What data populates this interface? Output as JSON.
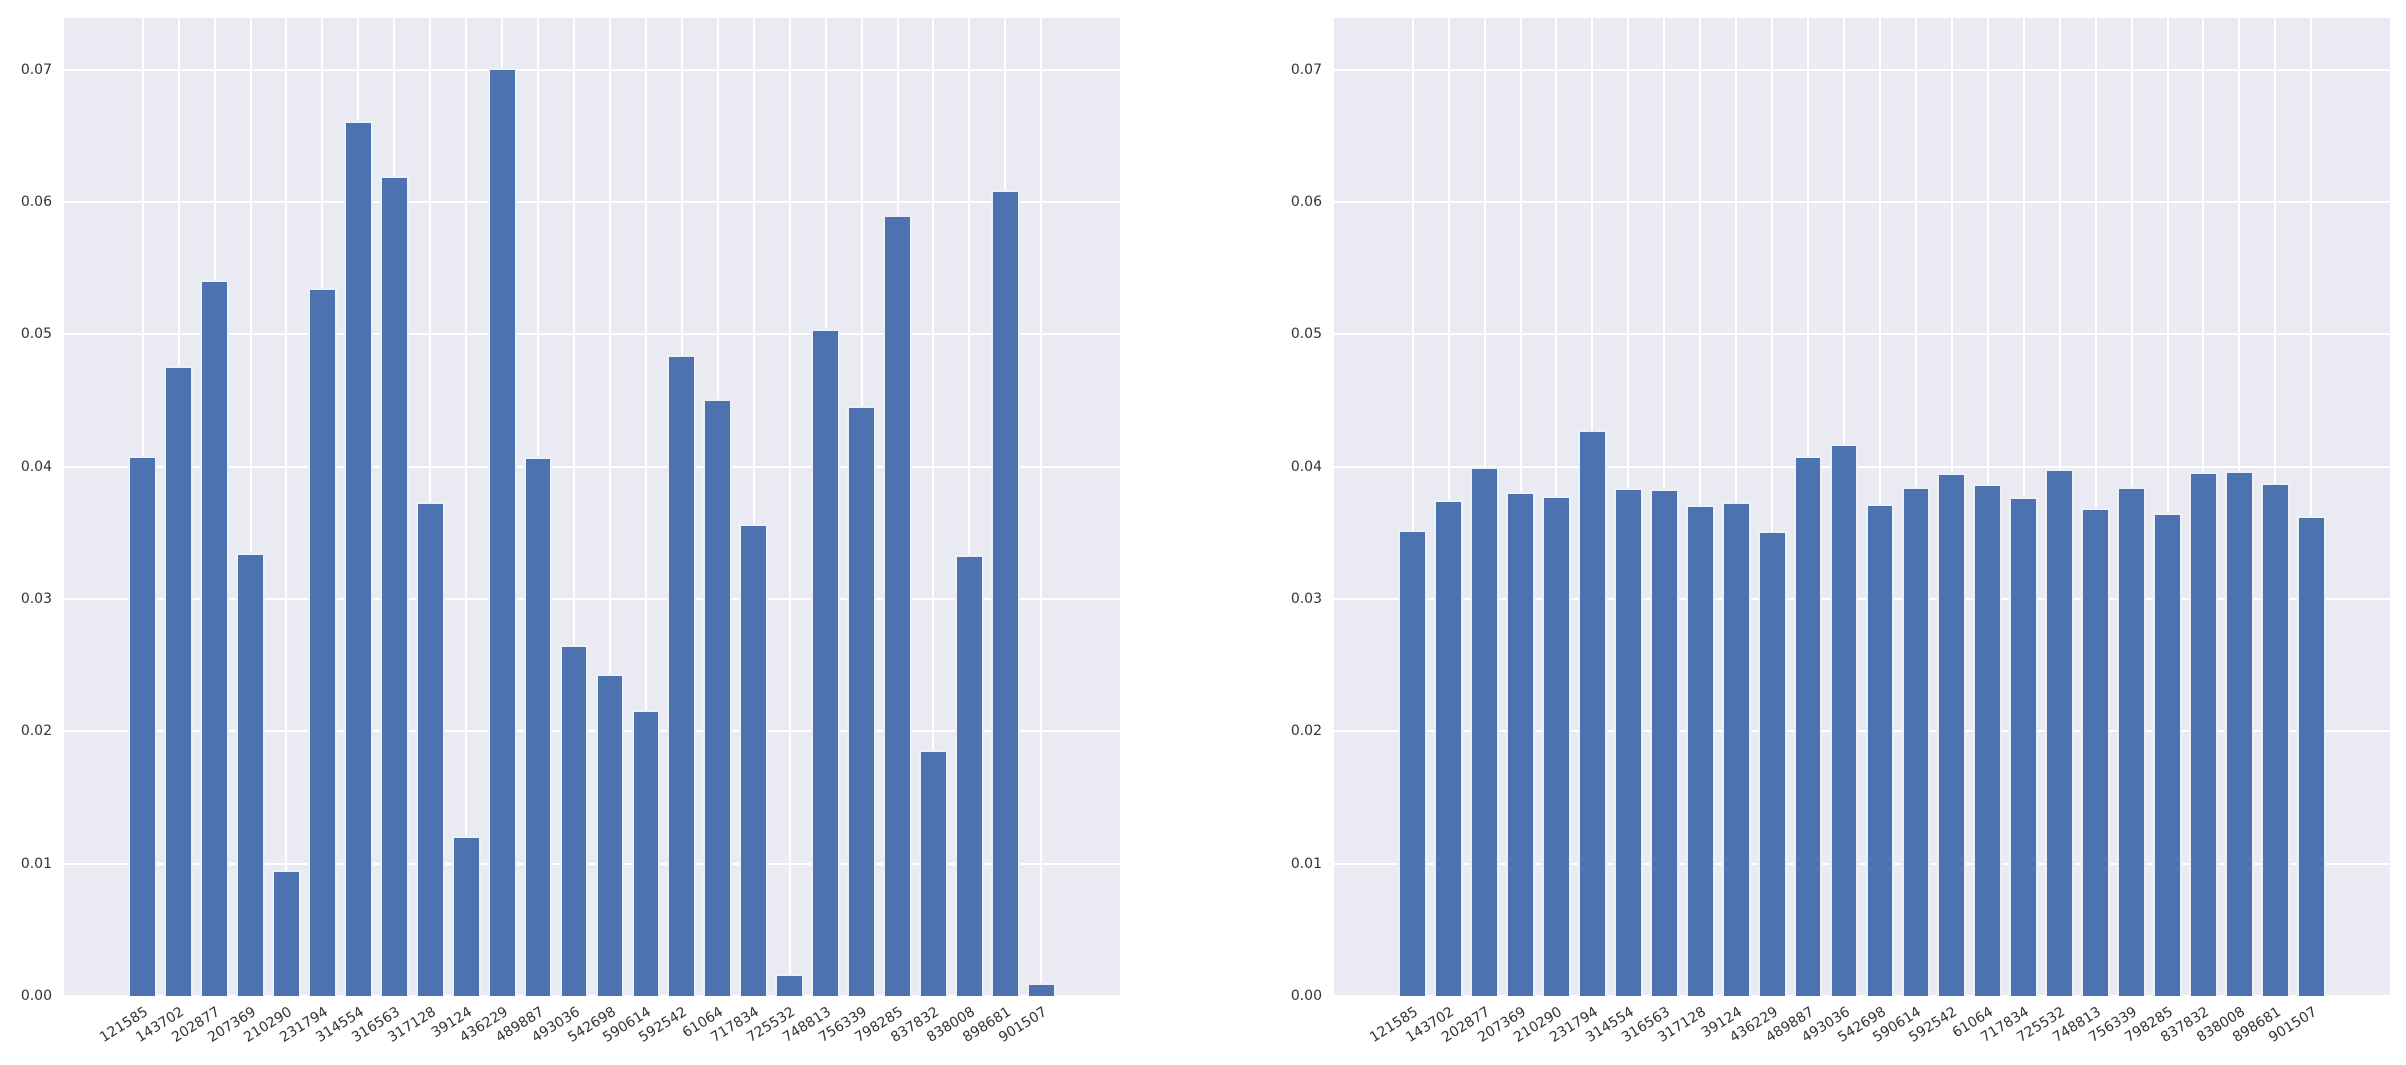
{
  "figure": {
    "background": "#ffffff",
    "axes_background": "#eaeaf2",
    "grid_color": "#ffffff",
    "bar_color": "#4c72b0",
    "tick_label_color": "#333333"
  },
  "chart_data": [
    {
      "type": "bar",
      "position": "left",
      "title": "",
      "xlabel": "",
      "ylabel": "",
      "ylim": [
        0,
        0.0739
      ],
      "grid": true,
      "yticks": [
        "0.00",
        "0.01",
        "0.02",
        "0.03",
        "0.04",
        "0.05",
        "0.06",
        "0.07"
      ],
      "categories": [
        "121585",
        "143702",
        "202877",
        "207369",
        "210290",
        "231794",
        "314554",
        "316563",
        "317128",
        "39124",
        "436229",
        "489887",
        "493036",
        "542698",
        "590614",
        "592542",
        "61064",
        "717834",
        "725532",
        "748813",
        "756339",
        "798285",
        "837832",
        "838008",
        "898681",
        "901507"
      ],
      "values": [
        0.0408,
        0.0476,
        0.0541,
        0.0335,
        0.0095,
        0.0535,
        0.0661,
        0.062,
        0.0373,
        0.0121,
        0.0701,
        0.0407,
        0.0265,
        0.0243,
        0.0216,
        0.0484,
        0.0451,
        0.0357,
        0.0017,
        0.0504,
        0.0446,
        0.059,
        0.0186,
        0.0333,
        0.0609,
        0.001
      ]
    },
    {
      "type": "bar",
      "position": "right",
      "title": "",
      "xlabel": "",
      "ylabel": "",
      "ylim": [
        0,
        0.0739
      ],
      "grid": true,
      "yticks": [
        "0.00",
        "0.01",
        "0.02",
        "0.03",
        "0.04",
        "0.05",
        "0.06",
        "0.07"
      ],
      "categories": [
        "121585",
        "143702",
        "202877",
        "207369",
        "210290",
        "231794",
        "314554",
        "316563",
        "317128",
        "39124",
        "436229",
        "489887",
        "493036",
        "542698",
        "590614",
        "592542",
        "61064",
        "717834",
        "725532",
        "748813",
        "756339",
        "798285",
        "837832",
        "838008",
        "898681",
        "901507"
      ],
      "values": [
        0.0352,
        0.0375,
        0.04,
        0.0381,
        0.0378,
        0.0428,
        0.0384,
        0.0383,
        0.0371,
        0.0373,
        0.0351,
        0.0408,
        0.0417,
        0.0372,
        0.0385,
        0.0395,
        0.0387,
        0.0377,
        0.0398,
        0.0369,
        0.0385,
        0.0365,
        0.0396,
        0.0397,
        0.0388,
        0.0363
      ]
    }
  ]
}
